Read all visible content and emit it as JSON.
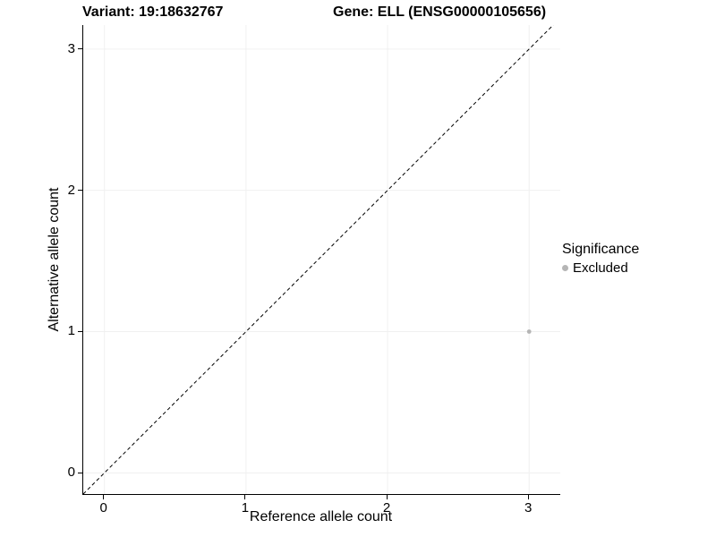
{
  "chart_data": {
    "type": "scatter",
    "title_left": "Variant: 19:18632767",
    "title_right": "Gene: ELL (ENSG00000105656)",
    "xlabel": "Reference allele count",
    "ylabel": "Alternative allele count",
    "xlim": [
      -0.15,
      3.22
    ],
    "ylim": [
      -0.15,
      3.17
    ],
    "xticks": [
      0,
      1,
      2,
      3
    ],
    "yticks": [
      0,
      1,
      2,
      3
    ],
    "grid": true,
    "grid_color": "#f0f0f0",
    "axis_color": "#000000",
    "identity_line": {
      "style": "dashed",
      "color": "#000000",
      "from": -0.15,
      "to": 3.3
    },
    "series": [
      {
        "name": "Excluded",
        "color": "#b5b5b5",
        "points": [
          {
            "x": 3,
            "y": 1
          }
        ]
      }
    ],
    "legend": {
      "title": "Significance",
      "position": "right",
      "items": [
        {
          "label": "Excluded",
          "color": "#b5b5b5"
        }
      ]
    }
  }
}
